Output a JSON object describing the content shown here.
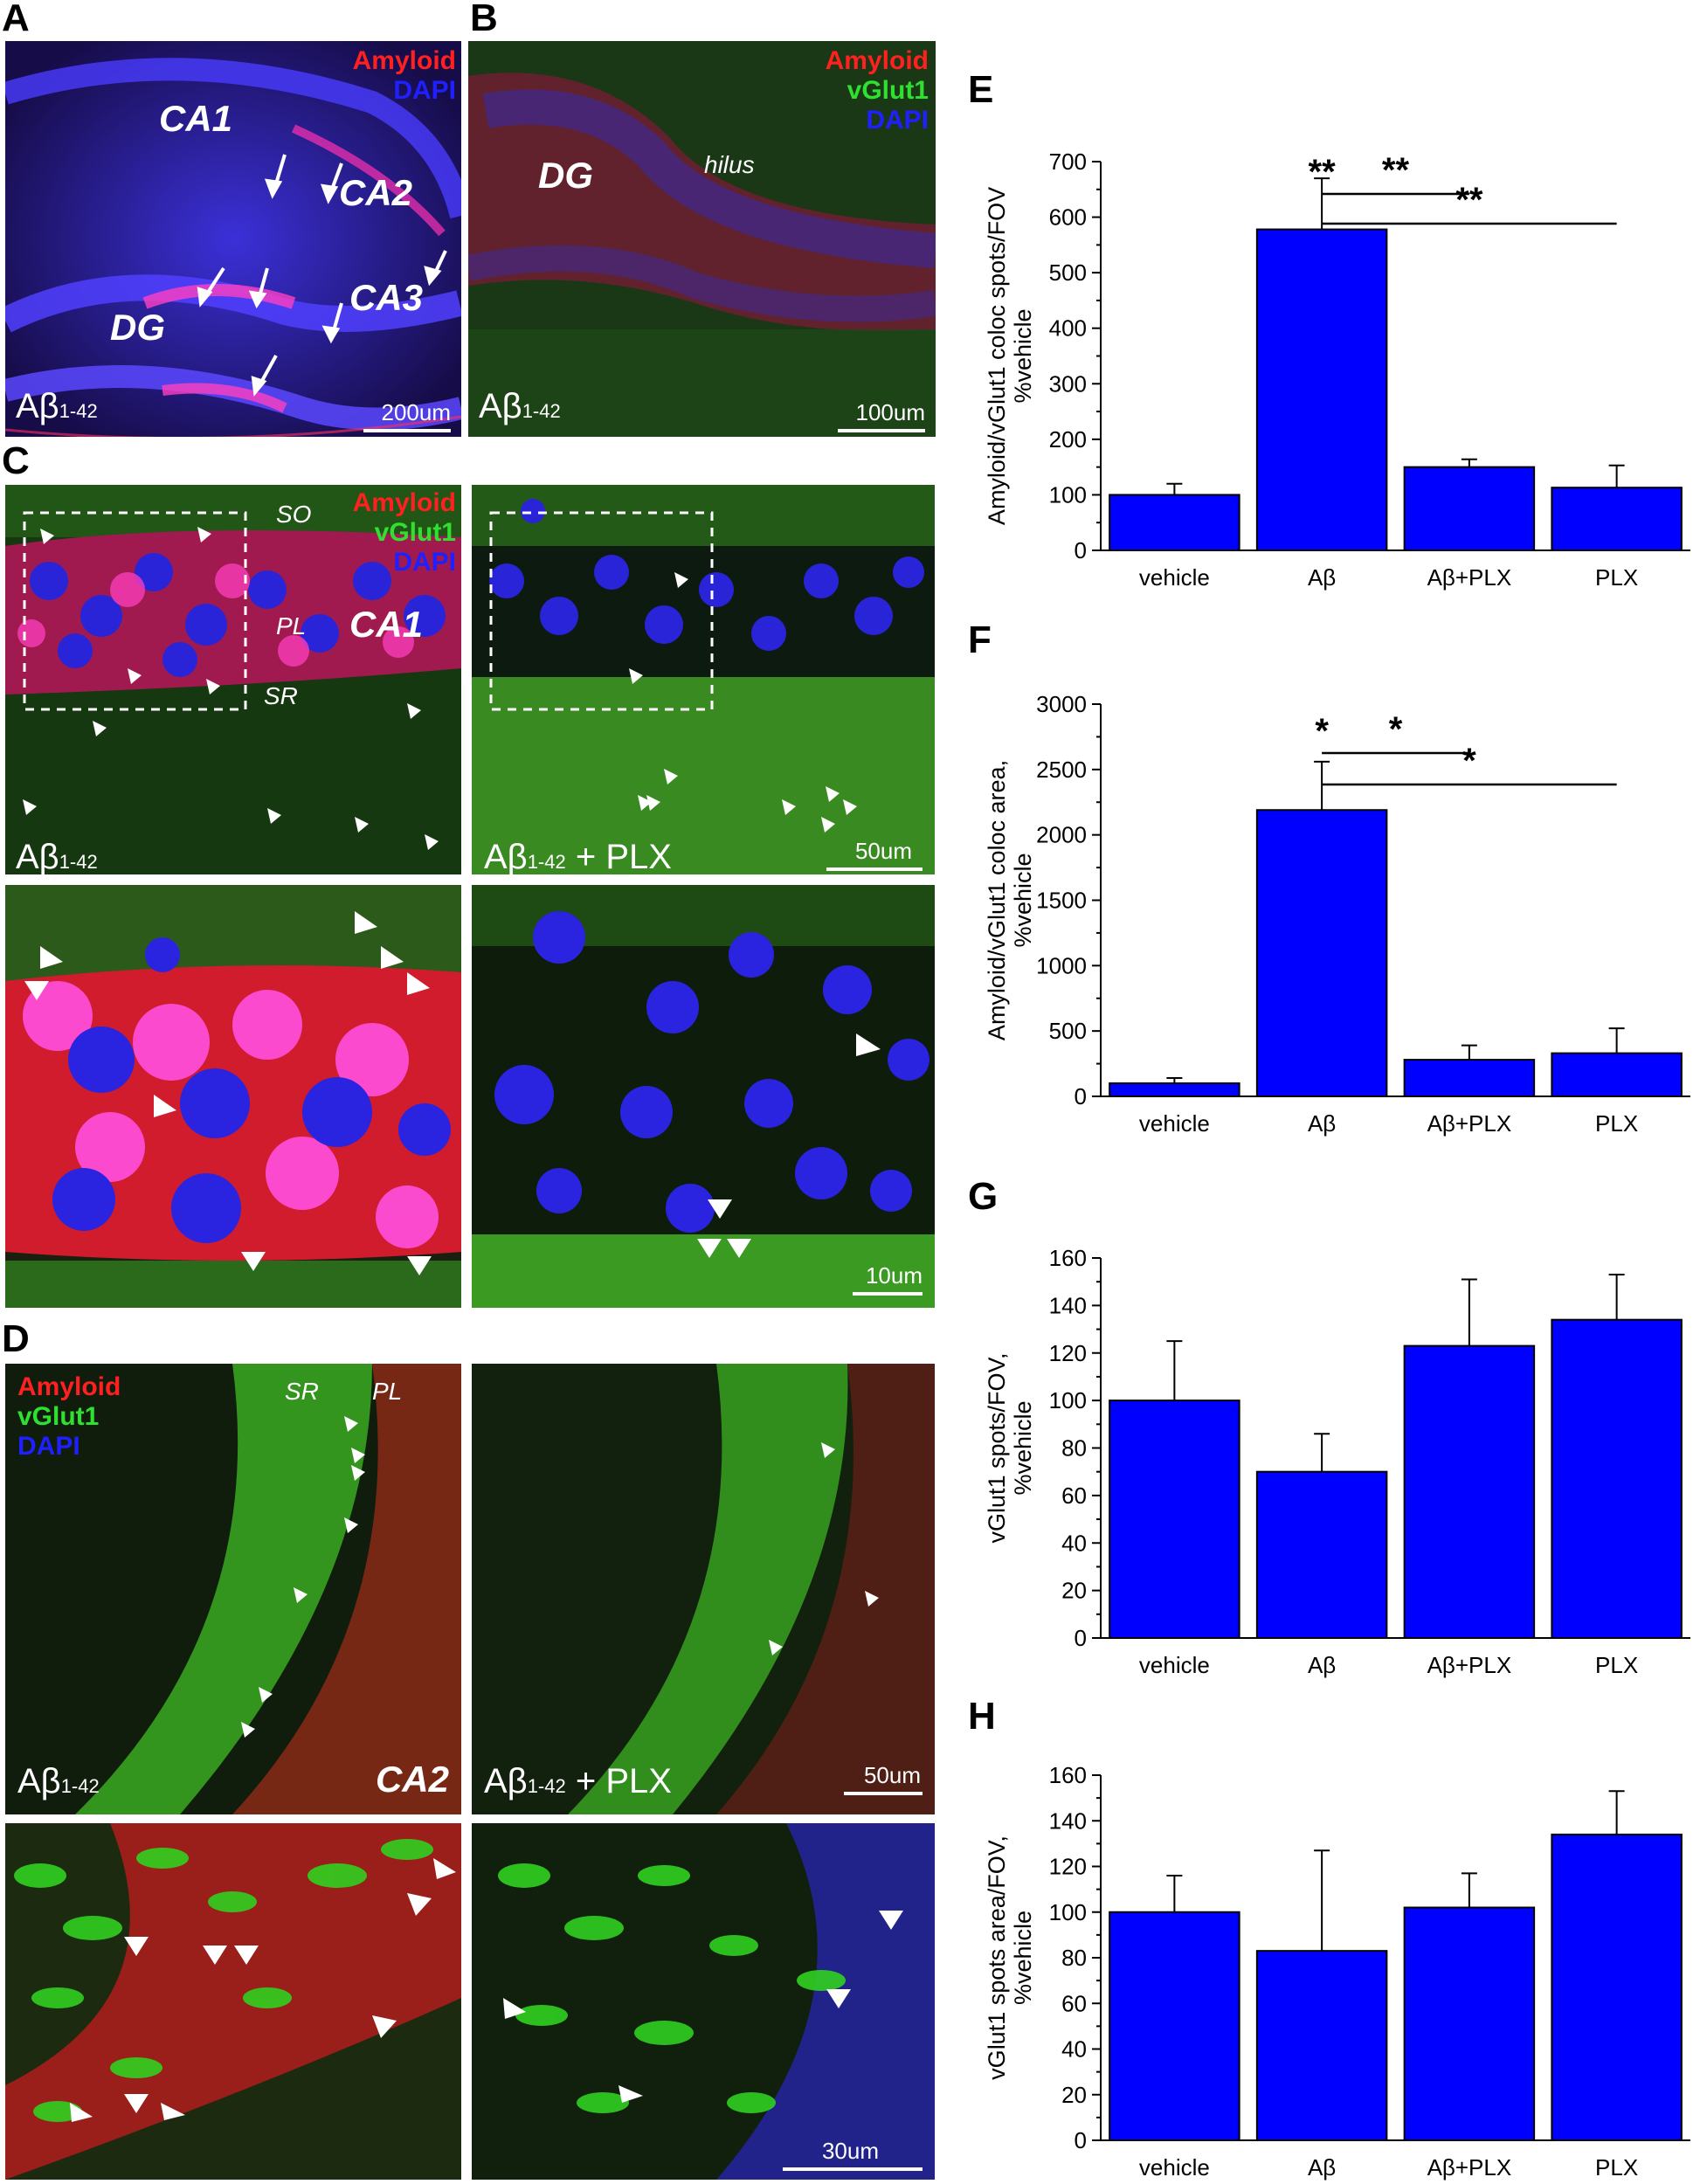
{
  "panels": {
    "A": {
      "letter": "A",
      "labels": {
        "region1": "CA1",
        "region2": "CA2",
        "region3": "CA3",
        "region4": "DG",
        "chan1": "Amyloid",
        "chan2": "DAPI",
        "cond": "Aβ",
        "cond_sub": "1-42",
        "scale": "200um"
      },
      "colors": {
        "bg": "#120a3a",
        "dapi": "#3a2cff",
        "amyloid": "#ff2a90"
      }
    },
    "B": {
      "letter": "B",
      "labels": {
        "region1": "DG",
        "hilus": "hilus",
        "chan1": "Amyloid",
        "chan2": "vGlut1",
        "chan3": "DAPI",
        "cond": "Aβ",
        "cond_sub": "1-42",
        "scale": "100um"
      }
    },
    "C": {
      "letter": "C",
      "labels": {
        "so": "SO",
        "pl": "PL",
        "sr": "SR",
        "region": "CA1",
        "chan1": "Amyloid",
        "chan2": "vGlut1",
        "chan3": "DAPI",
        "cond_left": "Aβ",
        "cond_left_sub": "1-42",
        "cond_right": "Aβ",
        "cond_right_sub": "1-42",
        "cond_right_suffix": " + PLX",
        "scale_top": "50um",
        "scale_bottom": "10um"
      }
    },
    "D": {
      "letter": "D",
      "labels": {
        "sr": "SR",
        "pl": "PL",
        "chan1": "Amyloid",
        "chan2": "vGlut1",
        "chan3": "DAPI",
        "cond_left": "Aβ",
        "cond_left_sub": "1-42",
        "region": "CA2",
        "cond_right": "Aβ",
        "cond_right_sub": "1-42",
        "cond_right_suffix": " + PLX",
        "scale_top": "50um",
        "scale_bottom": "30um"
      }
    }
  },
  "chart_data": [
    {
      "panel": "E",
      "type": "bar",
      "categories": [
        "vehicle",
        "Aβ",
        "Aβ+PLX",
        "PLX"
      ],
      "values": [
        100,
        578,
        150,
        113
      ],
      "errors": [
        20,
        92,
        14,
        40
      ],
      "ylabel_line1": "Amyloid/vGlut1 coloc spots/FOV",
      "ylabel_line2": "%vehicle",
      "ylim": [
        0,
        700
      ],
      "yticks": [
        0,
        100,
        200,
        300,
        400,
        500,
        600,
        700
      ],
      "significance": [
        {
          "label": "**",
          "at": 1
        },
        {
          "label": "**",
          "from": 1,
          "to": 2
        },
        {
          "label": "**",
          "from": 1,
          "to": 3
        }
      ],
      "bar_color": "#0000ff"
    },
    {
      "panel": "F",
      "type": "bar",
      "categories": [
        "vehicle",
        "Aβ",
        "Aβ+PLX",
        "PLX"
      ],
      "values": [
        100,
        2190,
        280,
        330
      ],
      "errors": [
        40,
        370,
        110,
        190
      ],
      "ylabel_line1": "Amyloid/vGlut1 coloc area,",
      "ylabel_line2": "%vehicle",
      "ylim": [
        0,
        3000
      ],
      "yticks": [
        0,
        500,
        1000,
        1500,
        2000,
        2500,
        3000
      ],
      "significance": [
        {
          "label": "*",
          "at": 1
        },
        {
          "label": "*",
          "from": 1,
          "to": 2
        },
        {
          "label": "*",
          "from": 1,
          "to": 3
        }
      ],
      "bar_color": "#0000ff"
    },
    {
      "panel": "G",
      "type": "bar",
      "categories": [
        "vehicle",
        "Aβ",
        "Aβ+PLX",
        "PLX"
      ],
      "values": [
        100,
        70,
        123,
        134
      ],
      "errors": [
        25,
        16,
        28,
        19
      ],
      "ylabel_line1": "vGlut1 spots/FOV,",
      "ylabel_line2": "%vehicle",
      "ylim": [
        0,
        160
      ],
      "yticks": [
        0,
        20,
        40,
        60,
        80,
        100,
        120,
        140,
        160
      ],
      "significance": [],
      "bar_color": "#0000ff"
    },
    {
      "panel": "H",
      "type": "bar",
      "categories": [
        "vehicle",
        "Aβ",
        "Aβ+PLX",
        "PLX"
      ],
      "values": [
        100,
        83,
        102,
        134
      ],
      "errors": [
        16,
        44,
        15,
        19
      ],
      "ylabel_line1": "vGlut1 spots area/FOV,",
      "ylabel_line2": "%vehicle",
      "ylim": [
        0,
        160
      ],
      "yticks": [
        0,
        20,
        40,
        60,
        80,
        100,
        120,
        140,
        160
      ],
      "significance": [],
      "bar_color": "#0000ff"
    }
  ]
}
